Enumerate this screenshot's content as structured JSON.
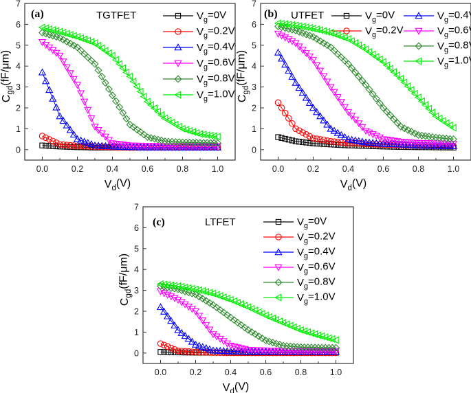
{
  "chart_data": [
    {
      "type": "scatter",
      "panel_label": "(a)",
      "title": "TGTFET",
      "xlabel": "V_d(V)",
      "ylabel": "C_gd(fF/μm)",
      "xlim": [
        -0.1,
        1.1
      ],
      "ylim": [
        -0.5,
        7
      ],
      "xticks": [
        "0.0",
        "0.2",
        "0.4",
        "0.6",
        "0.8",
        "1.0"
      ],
      "yticks": [
        "0",
        "1",
        "2",
        "3",
        "4",
        "5",
        "6",
        "7"
      ],
      "legend": "top-right",
      "x": [
        0,
        0.1,
        0.2,
        0.3,
        0.4,
        0.5,
        0.6,
        0.7,
        0.8,
        0.9,
        1.0
      ],
      "series": [
        {
          "name": "V_g=0V",
          "color": "#000000",
          "marker": "square",
          "values": [
            0.2,
            0.15,
            0.12,
            0.1,
            0.1,
            0.1,
            0.1,
            0.1,
            0.1,
            0.1,
            0.1
          ]
        },
        {
          "name": "V_g=0.2V",
          "color": "#ff0000",
          "marker": "circle",
          "values": [
            0.65,
            0.25,
            0.18,
            0.15,
            0.12,
            0.1,
            0.1,
            0.1,
            0.1,
            0.1,
            0.1
          ]
        },
        {
          "name": "V_g=0.4V",
          "color": "#0000ff",
          "marker": "triangle-up",
          "values": [
            3.7,
            1.6,
            0.5,
            0.2,
            0.15,
            0.12,
            0.1,
            0.1,
            0.1,
            0.1,
            0.1
          ]
        },
        {
          "name": "V_g=0.6V",
          "color": "#ff00ff",
          "marker": "triangle-down",
          "values": [
            5.15,
            4.5,
            3.1,
            1.1,
            0.3,
            0.2,
            0.18,
            0.17,
            0.17,
            0.17,
            0.17
          ]
        },
        {
          "name": "V_g=0.8V",
          "color": "#2e8b2e",
          "marker": "diamond",
          "values": [
            5.6,
            5.35,
            4.9,
            4.1,
            2.6,
            1.2,
            0.6,
            0.4,
            0.35,
            0.33,
            0.32
          ]
        },
        {
          "name": "V_g=1.0V",
          "color": "#00ee00",
          "marker": "triangle-left",
          "values": [
            5.85,
            5.65,
            5.4,
            5.1,
            4.5,
            3.5,
            2.3,
            1.5,
            1.0,
            0.75,
            0.62
          ]
        }
      ]
    },
    {
      "type": "scatter",
      "panel_label": "(b)",
      "title": "UTFET",
      "xlabel": "V_d(V)",
      "ylabel": "C_gd(fF/μm)",
      "xlim": [
        -0.1,
        1.1
      ],
      "ylim": [
        -0.5,
        7
      ],
      "xticks": [
        "0.0",
        "0.2",
        "0.4",
        "0.6",
        "0.8",
        "1.0"
      ],
      "yticks": [
        "0",
        "1",
        "2",
        "3",
        "4",
        "5",
        "6",
        "7"
      ],
      "legend": "top-right",
      "x": [
        0,
        0.1,
        0.2,
        0.3,
        0.4,
        0.5,
        0.6,
        0.7,
        0.8,
        0.9,
        1.0
      ],
      "series": [
        {
          "name": "V_g=0V",
          "color": "#000000",
          "marker": "square",
          "values": [
            0.6,
            0.4,
            0.3,
            0.25,
            0.2,
            0.18,
            0.15,
            0.13,
            0.12,
            0.11,
            0.1
          ]
        },
        {
          "name": "V_g=0.2V",
          "color": "#ff0000",
          "marker": "circle",
          "values": [
            2.25,
            1.0,
            0.55,
            0.4,
            0.32,
            0.28,
            0.25,
            0.22,
            0.2,
            0.18,
            0.17
          ]
        },
        {
          "name": "V_g=0.4V",
          "color": "#0000ff",
          "marker": "triangle-up",
          "values": [
            4.65,
            3.2,
            2.0,
            1.0,
            0.5,
            0.35,
            0.28,
            0.25,
            0.2,
            0.18,
            0.17
          ]
        },
        {
          "name": "V_g=0.6V",
          "color": "#ff00ff",
          "marker": "triangle-down",
          "values": [
            5.55,
            5.1,
            4.3,
            3.0,
            1.8,
            0.9,
            0.5,
            0.38,
            0.32,
            0.3,
            0.28
          ]
        },
        {
          "name": "V_g=0.8V",
          "color": "#2e8b2e",
          "marker": "diamond",
          "values": [
            5.9,
            5.7,
            5.4,
            4.9,
            4.1,
            3.1,
            2.0,
            1.1,
            0.7,
            0.58,
            0.5
          ]
        },
        {
          "name": "V_g=1.0V",
          "color": "#00ee00",
          "marker": "triangle-left",
          "values": [
            6.05,
            5.95,
            5.8,
            5.6,
            5.3,
            4.8,
            4.2,
            3.4,
            2.5,
            1.6,
            1.05
          ]
        }
      ]
    },
    {
      "type": "scatter",
      "panel_label": "(c)",
      "title": "LTFET",
      "xlabel": "V_d(V)",
      "ylabel": "C_gd(fF/μm)",
      "xlim": [
        -0.1,
        1.1
      ],
      "ylim": [
        -0.5,
        7
      ],
      "xticks": [
        "0.0",
        "0.2",
        "0.4",
        "0.6",
        "0.8",
        "1.0"
      ],
      "yticks": [
        "0",
        "1",
        "2",
        "3",
        "4",
        "5",
        "6",
        "7"
      ],
      "legend": "top-right",
      "x": [
        0,
        0.1,
        0.2,
        0.3,
        0.4,
        0.5,
        0.6,
        0.7,
        0.8,
        0.9,
        1.0
      ],
      "series": [
        {
          "name": "V_g=0V",
          "color": "#000000",
          "marker": "square",
          "values": [
            0.05,
            0.03,
            0.02,
            0.02,
            0.01,
            0.01,
            0.01,
            0.01,
            0.01,
            0.01,
            0.01
          ]
        },
        {
          "name": "V_g=0.2V",
          "color": "#ff0000",
          "marker": "circle",
          "values": [
            0.45,
            0.1,
            0.05,
            0.02,
            0.01,
            0.01,
            0.01,
            0.01,
            0.01,
            0.01,
            0.01
          ]
        },
        {
          "name": "V_g=0.4V",
          "color": "#0000ff",
          "marker": "triangle-up",
          "values": [
            2.2,
            1.1,
            0.4,
            0.12,
            0.08,
            0.06,
            0.05,
            0.05,
            0.05,
            0.05,
            0.05
          ]
        },
        {
          "name": "V_g=0.6V",
          "color": "#ff00ff",
          "marker": "triangle-down",
          "values": [
            2.95,
            2.55,
            2.0,
            0.9,
            0.35,
            0.15,
            0.12,
            0.1,
            0.1,
            0.1,
            0.1
          ]
        },
        {
          "name": "V_g=0.8V",
          "color": "#2e8b2e",
          "marker": "diamond",
          "values": [
            3.2,
            3.05,
            2.8,
            2.3,
            1.7,
            1.1,
            0.6,
            0.35,
            0.28,
            0.26,
            0.25
          ]
        },
        {
          "name": "V_g=1.0V",
          "color": "#00ee00",
          "marker": "triangle-left",
          "values": [
            3.3,
            3.2,
            3.05,
            2.85,
            2.55,
            2.2,
            1.8,
            1.45,
            1.1,
            0.85,
            0.62
          ]
        }
      ]
    }
  ]
}
